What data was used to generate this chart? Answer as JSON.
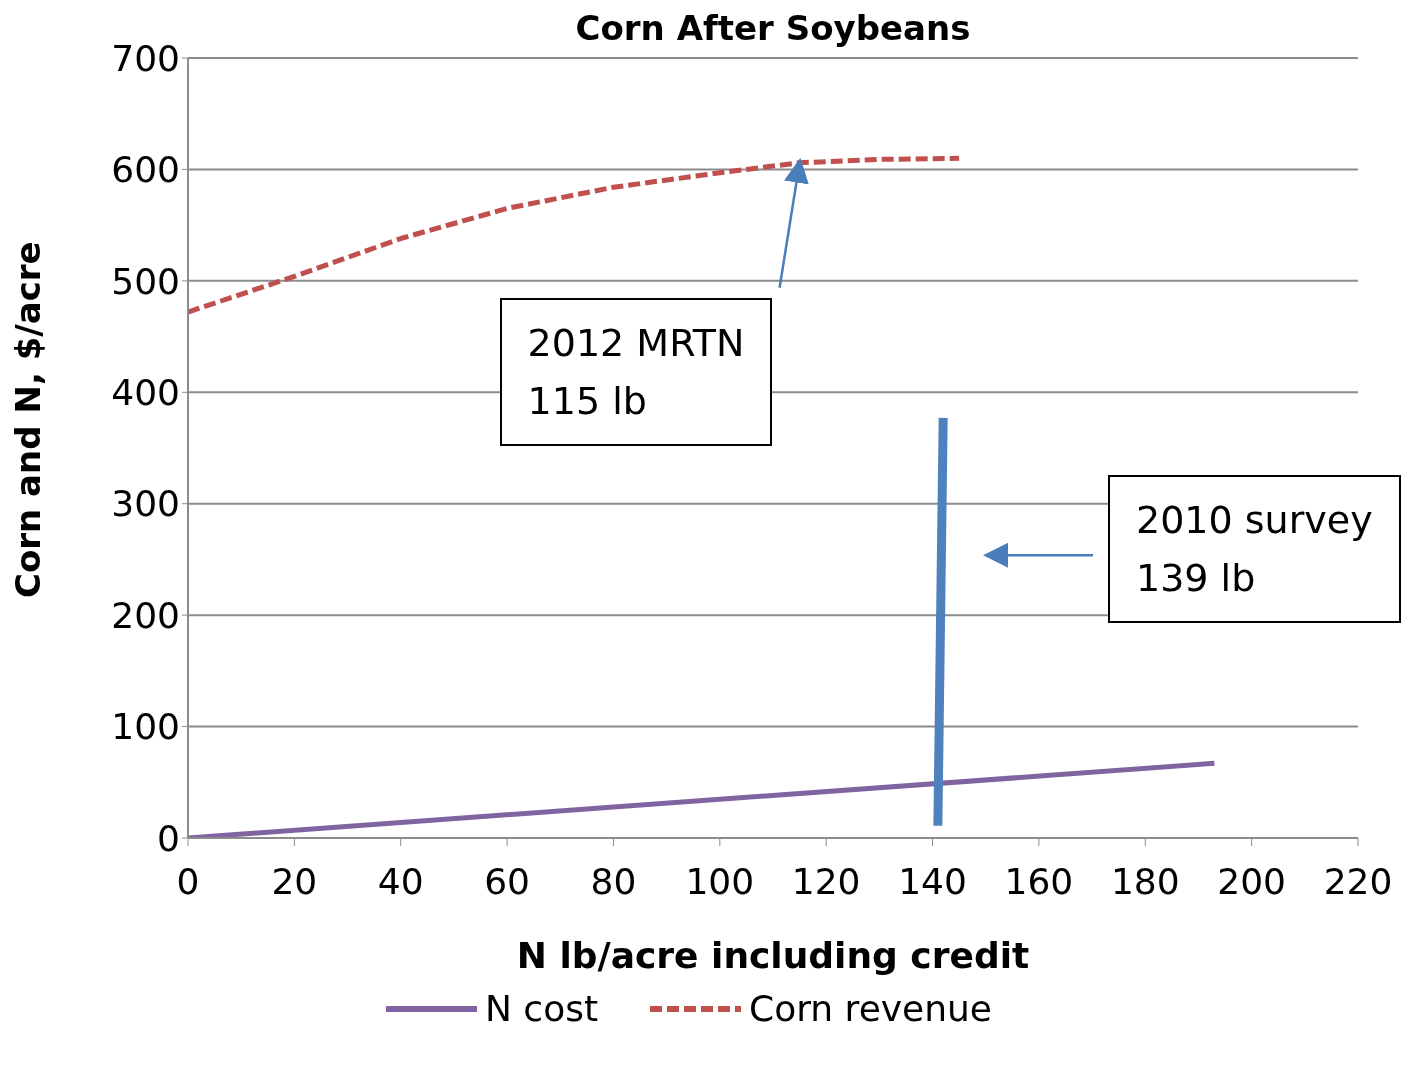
{
  "chart_data": {
    "type": "line",
    "title": "Corn After Soybeans",
    "xlabel": "N lb/acre including credit",
    "ylabel": "Corn and N, $/acre",
    "xlim": [
      0,
      220
    ],
    "xticks": [
      0,
      20,
      40,
      60,
      80,
      100,
      120,
      140,
      160,
      180,
      200,
      220
    ],
    "ylim": [
      0,
      700
    ],
    "yticks": [
      0,
      100,
      200,
      300,
      400,
      500,
      600,
      700
    ],
    "grid": "y",
    "legend": "bottom",
    "marker": "none",
    "series": [
      {
        "name": "N cost",
        "color": "#8064a2",
        "line_style": "solid",
        "x": [
          0,
          193
        ],
        "values": [
          0,
          67
        ]
      },
      {
        "name": "Corn revenue",
        "color": "#c0504d",
        "line_style": "dashed",
        "x": [
          0,
          20,
          40,
          60,
          80,
          100,
          115,
          130,
          145
        ],
        "values": [
          472,
          504,
          538,
          565,
          584,
          597,
          606,
          609,
          610
        ]
      },
      {
        "color": "#4f81bd",
        "line_style": "solid",
        "x": [
          141,
          142
        ],
        "values": [
          11,
          377
        ]
      }
    ],
    "annotations": [
      {
        "text": "2012 MRTN\n115 lb",
        "x": 115,
        "y": 606
      },
      "2010 survey\n139 lb"
    ]
  }
}
